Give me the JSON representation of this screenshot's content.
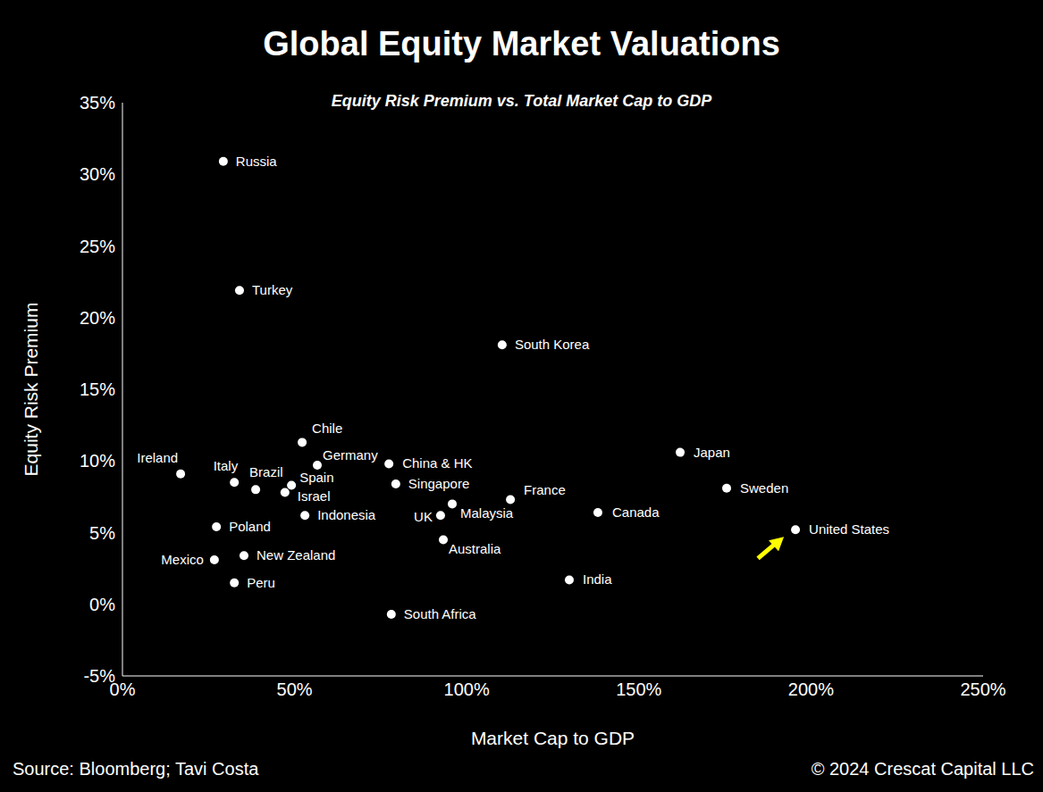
{
  "chart_data": {
    "type": "scatter",
    "title": "Global Equity Market Valuations",
    "subtitle": "Equity Risk Premium vs. Total Market Cap to GDP",
    "x_label": "Market Cap to GDP",
    "y_label": "Equity Risk Premium",
    "source": "Source: Bloomberg; Tavi Costa",
    "copyright": "© 2024 Crescat Capital LLC",
    "color": "#ffffff",
    "marker": "circle",
    "grid": false,
    "xlim": [
      0,
      250
    ],
    "xticks": [
      {
        "value": 0,
        "label": "0%"
      },
      {
        "value": 50,
        "label": "50%"
      },
      {
        "value": 100,
        "label": "100%"
      },
      {
        "value": 150,
        "label": "150%"
      },
      {
        "value": 200,
        "label": "200%"
      },
      {
        "value": 250,
        "label": "250%"
      }
    ],
    "ylim": [
      -5,
      35
    ],
    "yticks": [
      {
        "value": -5,
        "label": "-5%"
      },
      {
        "value": 0,
        "label": "0%"
      },
      {
        "value": 5,
        "label": "5%"
      },
      {
        "value": 10,
        "label": "10%"
      },
      {
        "value": 15,
        "label": "15%"
      },
      {
        "value": 20,
        "label": "20%"
      },
      {
        "value": 25,
        "label": "25%"
      },
      {
        "value": 30,
        "label": "30%"
      },
      {
        "value": 35,
        "label": "35%"
      }
    ],
    "point_labels": [
      "Russia",
      "Turkey",
      "South Korea",
      "Chile",
      "Ireland",
      "Italy",
      "Brazil",
      "Spain",
      "Israel",
      "Germany",
      "China & HK",
      "Singapore",
      "Indonesia",
      "France",
      "Malaysia",
      "UK",
      "Australia",
      "Poland",
      "Mexico",
      "New Zealand",
      "Peru",
      "South Africa",
      "India",
      "Canada",
      "Japan",
      "Sweden",
      "United States"
    ],
    "x": [
      29.3,
      34.0,
      110.3,
      52.2,
      16.9,
      32.5,
      38.7,
      49.1,
      47.2,
      56.6,
      77.4,
      79.4,
      53.0,
      112.7,
      95.8,
      92.4,
      93.2,
      27.3,
      26.7,
      35.3,
      32.5,
      78.1,
      129.8,
      138.1,
      162.0,
      175.5,
      195.5
    ],
    "values": [
      30.9,
      21.9,
      18.1,
      11.3,
      9.1,
      8.5,
      8.0,
      8.3,
      7.8,
      9.7,
      9.8,
      8.4,
      6.2,
      7.3,
      7.0,
      6.2,
      4.5,
      5.4,
      3.1,
      3.4,
      1.5,
      -0.7,
      1.7,
      6.4,
      10.6,
      8.1,
      5.2
    ]
  }
}
